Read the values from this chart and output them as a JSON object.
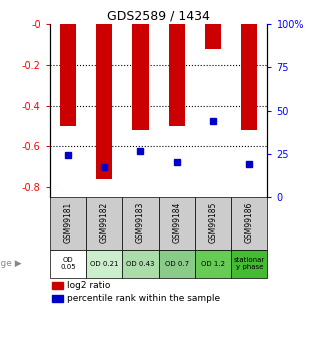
{
  "title": "GDS2589 / 1434",
  "samples": [
    "GSM99181",
    "GSM99182",
    "GSM99183",
    "GSM99184",
    "GSM99185",
    "GSM99186"
  ],
  "log2_ratio": [
    -0.5,
    -0.76,
    -0.52,
    -0.5,
    -0.12,
    -0.52
  ],
  "percentile_rank": [
    0.245,
    0.175,
    0.265,
    0.205,
    0.44,
    0.19
  ],
  "bar_color": "#cc0000",
  "dot_color": "#0000cc",
  "ylim_left": [
    -0.85,
    0.0
  ],
  "ylim_right": [
    0,
    1.0
  ],
  "yticks_left": [
    0.0,
    -0.2,
    -0.4,
    -0.6,
    -0.8
  ],
  "ytick_labels_left": [
    "-0",
    "-0.2",
    "-0.4",
    "-0.6",
    "-0.8"
  ],
  "yticks_right": [
    0.0,
    0.25,
    0.5,
    0.75,
    1.0
  ],
  "ytick_labels_right": [
    "0",
    "25",
    "50",
    "75",
    "100%"
  ],
  "age_labels": [
    "OD\n0.05",
    "OD 0.21",
    "OD 0.43",
    "OD 0.7",
    "OD 1.2",
    "stationar\ny phase"
  ],
  "age_bg_colors": [
    "#ffffff",
    "#bbeeaa",
    "#88dd88",
    "#66cc66",
    "#44cc44",
    "#22bb22"
  ],
  "sample_bg_color": "#cccccc",
  "legend_items": [
    "log2 ratio",
    "percentile rank within the sample"
  ]
}
